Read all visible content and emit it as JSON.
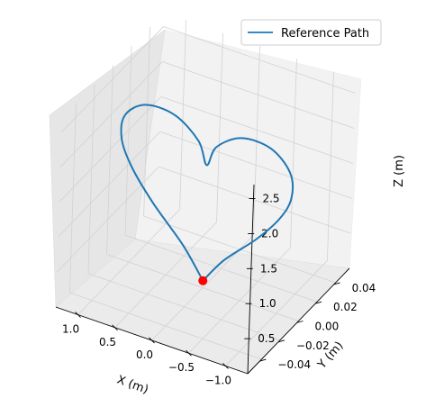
{
  "chart_data": {
    "type": "line",
    "projection": "3d",
    "xlabel": "X (m)",
    "ylabel": "Y (m)",
    "zlabel": "Z (m)",
    "xlim": [
      -1.3,
      1.3
    ],
    "ylim": [
      -0.055,
      0.055
    ],
    "zlim": [
      0.0,
      2.7
    ],
    "x_ticks": [
      {
        "value": 1.0,
        "label": "1.0"
      },
      {
        "value": 0.5,
        "label": "0.5"
      },
      {
        "value": 0.0,
        "label": "0.0"
      },
      {
        "value": -0.5,
        "label": "−0.5"
      },
      {
        "value": -1.0,
        "label": "−1.0"
      }
    ],
    "y_ticks": [
      {
        "value": 0.04,
        "label": "0.04"
      },
      {
        "value": 0.02,
        "label": "0.02"
      },
      {
        "value": 0.0,
        "label": "0.00"
      },
      {
        "value": -0.02,
        "label": "−0.02"
      },
      {
        "value": -0.04,
        "label": "−0.04"
      }
    ],
    "z_ticks": [
      {
        "value": 0.5,
        "label": "0.5"
      },
      {
        "value": 1.0,
        "label": "1.0"
      },
      {
        "value": 1.5,
        "label": "1.5"
      },
      {
        "value": 2.0,
        "label": "2.0"
      },
      {
        "value": 2.5,
        "label": "2.5"
      }
    ],
    "grid": true,
    "legend_position": "top-right",
    "series": [
      {
        "name": "Reference Path",
        "color": "#1f77b4",
        "description": "heart-shaped curve in the X-Z plane at Y = 0",
        "points": [
          {
            "x": 0.0,
            "y": 0.0,
            "z": 0.1
          },
          {
            "x": -0.28,
            "y": 0.0,
            "z": 0.5
          },
          {
            "x": -0.7,
            "y": 0.0,
            "z": 0.95
          },
          {
            "x": -1.0,
            "y": 0.0,
            "z": 1.35
          },
          {
            "x": -1.15,
            "y": 0.0,
            "z": 1.7
          },
          {
            "x": -1.12,
            "y": 0.0,
            "z": 2.05
          },
          {
            "x": -0.85,
            "y": 0.0,
            "z": 2.3
          },
          {
            "x": -0.45,
            "y": 0.0,
            "z": 2.3
          },
          {
            "x": -0.12,
            "y": 0.0,
            "z": 2.05
          },
          {
            "x": 0.0,
            "y": 0.0,
            "z": 1.75
          },
          {
            "x": 0.12,
            "y": 0.0,
            "z": 2.05
          },
          {
            "x": 0.45,
            "y": 0.0,
            "z": 2.3
          },
          {
            "x": 0.85,
            "y": 0.0,
            "z": 2.3
          },
          {
            "x": 1.12,
            "y": 0.0,
            "z": 2.05
          },
          {
            "x": 1.15,
            "y": 0.0,
            "z": 1.7
          },
          {
            "x": 1.0,
            "y": 0.0,
            "z": 1.35
          },
          {
            "x": 0.7,
            "y": 0.0,
            "z": 0.95
          },
          {
            "x": 0.28,
            "y": 0.0,
            "z": 0.5
          },
          {
            "x": 0.0,
            "y": 0.0,
            "z": 0.1
          }
        ]
      }
    ],
    "markers": [
      {
        "x": 0.0,
        "y": 0.0,
        "z": 0.1,
        "color": "#ff0000"
      }
    ]
  }
}
